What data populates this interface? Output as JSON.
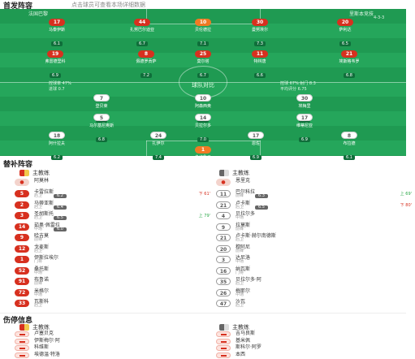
{
  "header": {
    "title": "首发阵容",
    "subtitle": "点击球员可查看本场详细数据"
  },
  "pitch": {
    "home_team": "法国巴黎",
    "home_form": "4-1-4-1",
    "away_team": "里斯本竞技",
    "away_form": "4-3-3",
    "center_label": "球队对比",
    "left_stats": [
      "控球率 47%",
      "进球 0.7"
    ],
    "right_stats": [
      "控球 67% 射门 8.3",
      "平均评分 6.75"
    ],
    "top_players": [
      {
        "num": "17",
        "name": "马泰伊斯",
        "rating": "6.1",
        "color": "red"
      },
      {
        "num": "44",
        "name": "扎努巴尔迪亚",
        "rating": "6.7",
        "color": "red"
      },
      {
        "num": "10",
        "name": "贝伦德拉",
        "rating": "7.1",
        "color": "orange"
      },
      {
        "num": "30",
        "name": "曼努埃尔",
        "rating": "7.3",
        "color": "red"
      },
      {
        "num": "20",
        "name": "萨利达",
        "rating": "6.5",
        "color": "red"
      }
    ],
    "mid_players": [
      {
        "num": "19",
        "name": "弗雷德里科",
        "rating": "6.9",
        "color": "red"
      },
      {
        "num": "8",
        "name": "佩德罗贡萨",
        "rating": "7.2",
        "color": "red"
      },
      {
        "num": "25",
        "name": "莫尔塔",
        "rating": "6.7",
        "color": "red"
      },
      {
        "num": "11",
        "name": "特林唐",
        "rating": "6.6",
        "color": "red"
      },
      {
        "num": "21",
        "name": "埃斯格韦罗",
        "rating": "6.8",
        "color": "red"
      }
    ],
    "away_mid": [
      {
        "num": "7",
        "name": "登贝莱",
        "rating": "6.5",
        "color": "white"
      },
      {
        "num": "10",
        "name": "阿森西奥",
        "rating": "6.4",
        "color": "white"
      },
      {
        "num": "30",
        "name": "埃梅里",
        "rating": "7.0",
        "color": "white"
      },
      {
        "num": "5",
        "name": "马尔基尼奥斯",
        "rating": "6.8",
        "color": "white"
      },
      {
        "num": "14",
        "name": "贝拉尔多",
        "rating": "7.0",
        "color": "white"
      },
      {
        "num": "17",
        "name": "维蒂尼亚",
        "rating": "6.9",
        "color": "white"
      }
    ],
    "away_back": [
      {
        "num": "18",
        "name": "阿什拉夫",
        "rating": "6.2",
        "color": "white"
      },
      {
        "num": "24",
        "name": "扎伊尔",
        "rating": "7.4",
        "color": "white"
      },
      {
        "num": "17",
        "name": "恩佐",
        "rating": "6.9",
        "color": "white"
      },
      {
        "num": "8",
        "name": "布拉德",
        "rating": "6.1",
        "color": "white"
      }
    ],
    "keeper": {
      "num": "1",
      "name": "多纳鲁马",
      "rating": "6.2",
      "color": "orange"
    }
  },
  "subs": {
    "title": "替补阵容",
    "home_coach_label": "主教练",
    "home_coach": "阿莫林",
    "away_coach_label": "主教练",
    "away_coach": "恩里克",
    "home_rows": [
      {
        "num": "5",
        "name": "卡雷拉斯",
        "pos": "后卫",
        "rate": "6.2",
        "sub": "下 61'",
        "dir": "out"
      },
      {
        "num": "2",
        "name": "马蒂亚斯",
        "pos": "后卫",
        "rate": "6.4",
        "sub": "",
        "dir": ""
      },
      {
        "num": "3",
        "name": "圣胡斯托",
        "pos": "后卫",
        "rate": "6.5",
        "sub": "上 79'",
        "dir": "in"
      },
      {
        "num": "14",
        "name": "茹奥·佩雷拉",
        "pos": "中场",
        "rate": "6.0",
        "sub": "",
        "dir": ""
      },
      {
        "num": "9",
        "name": "哈吉莫",
        "pos": "前锋",
        "rate": "",
        "sub": "",
        "dir": ""
      },
      {
        "num": "12",
        "name": "戈麦斯",
        "pos": "后卫",
        "rate": "",
        "sub": "",
        "dir": ""
      },
      {
        "num": "1",
        "name": "伊斯拉埃尔",
        "pos": "门将",
        "rate": "",
        "sub": "",
        "dir": ""
      },
      {
        "num": "52",
        "name": "桑托斯",
        "pos": "中场",
        "rate": "",
        "sub": "",
        "dir": ""
      },
      {
        "num": "91",
        "name": "布鲁诺",
        "pos": "前锋",
        "rate": "",
        "sub": "",
        "dir": ""
      },
      {
        "num": "72",
        "name": "米格尔",
        "pos": "中场",
        "rate": "",
        "sub": "",
        "dir": ""
      },
      {
        "num": "33",
        "name": "瓦斯科",
        "pos": "后卫",
        "rate": "",
        "sub": "",
        "dir": ""
      }
    ],
    "away_rows": [
      {
        "num": "11",
        "name": "巴尔科拉",
        "pos": "前锋",
        "rate": "6.3",
        "sub": "上 69'",
        "dir": "in"
      },
      {
        "num": "21",
        "name": "卢卡斯",
        "pos": "后卫",
        "rate": "6.5",
        "sub": "下 80'",
        "dir": "out"
      },
      {
        "num": "4",
        "name": "贝拉尔多",
        "pos": "中场",
        "rate": "",
        "sub": "",
        "dir": ""
      },
      {
        "num": "9",
        "name": "拉莫斯",
        "pos": "前锋",
        "rate": "",
        "sub": "",
        "dir": ""
      },
      {
        "num": "21",
        "name": "卢卡斯·赫尔南德斯",
        "pos": "后卫",
        "rate": "",
        "sub": "",
        "dir": ""
      },
      {
        "num": "20",
        "name": "穆阿尼",
        "pos": "前锋",
        "rate": "",
        "sub": "",
        "dir": ""
      },
      {
        "num": "3",
        "name": "达尼洛",
        "pos": "中场",
        "rate": "",
        "sub": "",
        "dir": ""
      },
      {
        "num": "16",
        "name": "纳瓦斯",
        "pos": "门将",
        "rate": "",
        "sub": "",
        "dir": ""
      },
      {
        "num": "35",
        "name": "贝拉尔多·阿",
        "pos": "后卫",
        "rate": "",
        "sub": "",
        "dir": ""
      },
      {
        "num": "26",
        "name": "梅耶尔",
        "pos": "中场",
        "rate": "",
        "sub": "",
        "dir": ""
      },
      {
        "num": "47",
        "name": "沙瓦",
        "pos": "后卫",
        "rate": "",
        "sub": "",
        "dir": ""
      }
    ]
  },
  "injury": {
    "title": "伤停信息",
    "home_label": "主教练",
    "away_label": "主教练",
    "home_rows": [
      {
        "name": "卢塞贝克",
        "reason": "伤病"
      },
      {
        "name": "伊斯梅尔·阿",
        "reason": "伤病"
      },
      {
        "name": "科维斯",
        "reason": "伤病"
      },
      {
        "name": "埃德温·特洛",
        "reason": "伤病"
      }
    ],
    "away_rows": [
      {
        "name": "吉马良斯",
        "reason": "伤病"
      },
      {
        "name": "基米佩",
        "reason": "伤病"
      },
      {
        "name": "斯科尔·阿罗",
        "reason": "伤病"
      },
      {
        "name": "本西",
        "reason": "伤病"
      }
    ]
  }
}
